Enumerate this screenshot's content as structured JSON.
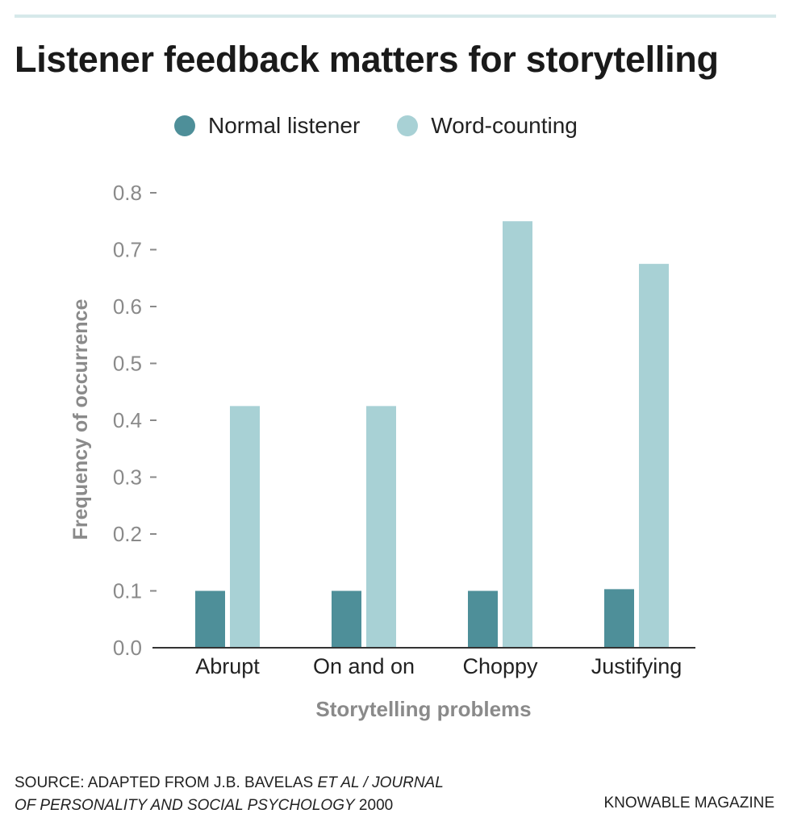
{
  "title": "Listener feedback matters for storytelling",
  "colors": {
    "normal": "#4e8f99",
    "word_counting": "#a8d1d5",
    "axis_text": "#8a8a8a",
    "top_rule": "#d6e9ea"
  },
  "chart_data": {
    "type": "bar",
    "title": "Listener feedback matters for storytelling",
    "xlabel": "Storytelling problems",
    "ylabel": "Frequency of occurrence",
    "categories": [
      "Abrupt",
      "On and on",
      "Choppy",
      "Justifying"
    ],
    "series": [
      {
        "name": "Normal listener",
        "values": [
          0.1,
          0.1,
          0.1,
          0.103
        ]
      },
      {
        "name": "Word-counting",
        "values": [
          0.425,
          0.425,
          0.75,
          0.675
        ]
      }
    ],
    "ylim": [
      0,
      0.8
    ],
    "yticks": [
      "0.0",
      "0.1",
      "0.2",
      "0.3",
      "0.4",
      "0.5",
      "0.6",
      "0.7",
      "0.8"
    ],
    "grid": false,
    "legend": "top"
  },
  "footer": {
    "source_line1_a": "SOURCE: ADAPTED FROM J.B. BAVELAS ",
    "source_line1_b": "ET AL / JOURNAL",
    "source_line2_a": "OF PERSONALITY AND SOCIAL PSYCHOLOGY",
    "source_line2_b": " 2000",
    "brand": "KNOWABLE MAGAZINE"
  }
}
